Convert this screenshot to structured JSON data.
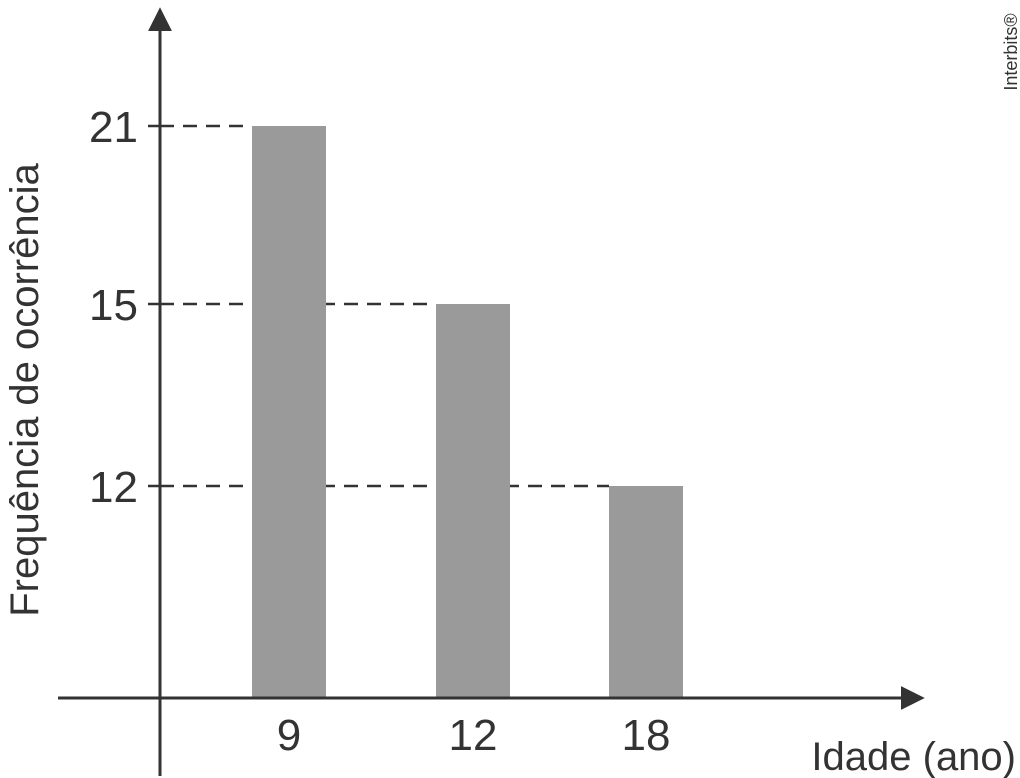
{
  "chart_data": {
    "type": "bar",
    "categories": [
      "9",
      "12",
      "18"
    ],
    "values": [
      21,
      15,
      12
    ],
    "yticks": [
      "21",
      "15",
      "12"
    ],
    "xlabel": "Idade (ano)",
    "ylabel": "Frequência de ocorrência",
    "bar_color": "#9a9a9b",
    "axis_color": "#333333",
    "reference_lines": "dashed",
    "grid": false,
    "legend": "none"
  },
  "credit": "Interbits®"
}
